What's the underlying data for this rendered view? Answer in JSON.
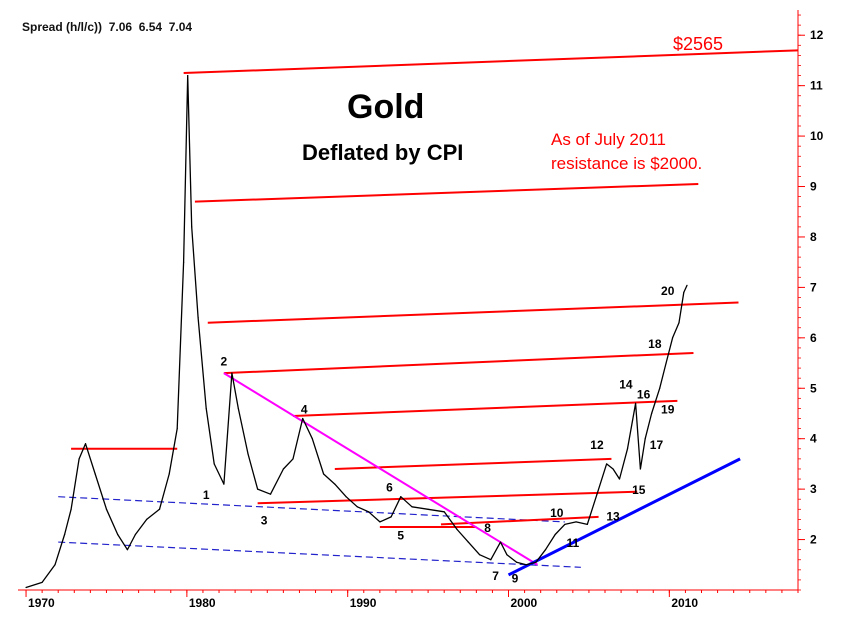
{
  "header": {
    "label": "Spread (h/l/c))",
    "high": "7.06",
    "low": "6.54",
    "close": "7.04"
  },
  "title": "Gold",
  "subtitle": "Deflated by CPI",
  "note": "As of July 2011\nresistance is $2000.",
  "target_label": "$2565",
  "colors": {
    "price": "#000000",
    "resistance": "#ff0000",
    "downtrend": "#ff00ff",
    "uptrend": "#0000ff",
    "channel": "#2222cc",
    "axis": "#ff0000"
  },
  "chart_data": {
    "type": "line",
    "xlim": [
      1969.5,
      2018
    ],
    "ylim": [
      1,
      12.5
    ],
    "x_ticks": [
      "1970",
      "1980",
      "1990",
      "2000",
      "2010"
    ],
    "y_ticks": [
      "2",
      "3",
      "4",
      "5",
      "6",
      "7",
      "8",
      "9",
      "10",
      "11",
      "12"
    ],
    "series": [
      {
        "style": "black price line",
        "x": [
          1970,
          1971,
          1971.8,
          1972.4,
          1972.8,
          1973.3,
          1973.7,
          1974.3,
          1975,
          1975.7,
          1976.3,
          1976.8,
          1977.5,
          1978.3,
          1978.9,
          1979.4,
          1979.8,
          1980.05,
          1980.3,
          1980.7,
          1981.2,
          1981.7,
          1982.3,
          1982.8,
          1983.2,
          1983.8,
          1984.4,
          1985.2,
          1986,
          1986.6,
          1987.2,
          1987.8,
          1988.5,
          1989.2,
          1989.9,
          1990.6,
          1991.3,
          1992,
          1992.7,
          1993.3,
          1994,
          1995,
          1996,
          1996.8,
          1997.5,
          1998.2,
          1998.9,
          1999.5,
          1999.9,
          2000.5,
          2001.1,
          2001.7,
          2002.3,
          2002.9,
          2003.5,
          2004.2,
          2004.9,
          2005.5,
          2006.1,
          2006.5,
          2006.9,
          2007.4,
          2007.9,
          2008.2,
          2008.5,
          2008.9,
          2009.4,
          2009.8,
          2010.2,
          2010.6,
          2010.9,
          2011.1
        ],
        "y": [
          1.05,
          1.15,
          1.5,
          2.1,
          2.6,
          3.6,
          3.9,
          3.3,
          2.6,
          2.1,
          1.8,
          2.1,
          2.4,
          2.6,
          3.3,
          4.2,
          7.5,
          11.2,
          8.2,
          6.4,
          4.6,
          3.5,
          3.1,
          5.3,
          4.6,
          3.7,
          3.0,
          2.9,
          3.4,
          3.6,
          4.4,
          4.0,
          3.3,
          3.1,
          2.85,
          2.65,
          2.55,
          2.35,
          2.45,
          2.85,
          2.65,
          2.6,
          2.55,
          2.2,
          1.95,
          1.7,
          1.6,
          1.95,
          1.7,
          1.55,
          1.5,
          1.55,
          1.8,
          2.1,
          2.3,
          2.35,
          2.3,
          2.9,
          3.5,
          3.4,
          3.2,
          3.8,
          4.7,
          3.4,
          4.0,
          4.5,
          5.0,
          5.5,
          6.0,
          6.3,
          6.9,
          7.04
        ]
      }
    ],
    "resistance_lines": [
      {
        "x": [
          1979.8,
          2018
        ],
        "y": [
          11.25,
          11.7
        ]
      },
      {
        "x": [
          1980.5,
          2011.8
        ],
        "y": [
          8.7,
          9.05
        ]
      },
      {
        "x": [
          1981.3,
          2014.3
        ],
        "y": [
          6.3,
          6.7
        ]
      },
      {
        "x": [
          1982.3,
          2011.5
        ],
        "y": [
          5.3,
          5.7
        ]
      },
      {
        "x": [
          1986.6,
          2010.5
        ],
        "y": [
          4.45,
          4.75
        ]
      },
      {
        "x": [
          1972.8,
          1979.4
        ],
        "y": [
          3.8,
          3.8
        ]
      },
      {
        "x": [
          1989.2,
          2006.4
        ],
        "y": [
          3.4,
          3.6
        ]
      },
      {
        "x": [
          1984.4,
          2008
        ],
        "y": [
          2.72,
          2.95
        ]
      },
      {
        "x": [
          1992,
          1998
        ],
        "y": [
          2.25,
          2.25
        ]
      },
      {
        "x": [
          1995.8,
          2005.6
        ],
        "y": [
          2.3,
          2.45
        ]
      }
    ],
    "downtrend_line": {
      "x": [
        1982.3,
        2001.8
      ],
      "y": [
        5.3,
        1.5
      ]
    },
    "uptrend_line": {
      "x": [
        2000,
        2014.4
      ],
      "y": [
        1.3,
        3.6
      ]
    },
    "channel_lines": [
      {
        "x": [
          1972,
          2003.5
        ],
        "y": [
          2.85,
          2.35
        ]
      },
      {
        "x": [
          1972,
          2004.5
        ],
        "y": [
          1.95,
          1.45
        ]
      }
    ],
    "wave_labels": [
      {
        "text": "1",
        "x": 1981.2,
        "y": 2.8
      },
      {
        "text": "2",
        "x": 1982.3,
        "y": 5.45
      },
      {
        "text": "3",
        "x": 1984.8,
        "y": 2.3
      },
      {
        "text": "4",
        "x": 1987.3,
        "y": 4.5
      },
      {
        "text": "5",
        "x": 1993.3,
        "y": 2.0
      },
      {
        "text": "6",
        "x": 1992.6,
        "y": 2.95
      },
      {
        "text": "7",
        "x": 1999.2,
        "y": 1.2
      },
      {
        "text": "8",
        "x": 1998.7,
        "y": 2.15
      },
      {
        "text": "9",
        "x": 2000.4,
        "y": 1.15
      },
      {
        "text": "10",
        "x": 2003,
        "y": 2.45
      },
      {
        "text": "11",
        "x": 2004,
        "y": 1.85
      },
      {
        "text": "12",
        "x": 2005.5,
        "y": 3.8
      },
      {
        "text": "13",
        "x": 2006.5,
        "y": 2.38
      },
      {
        "text": "14",
        "x": 2007.3,
        "y": 5.0
      },
      {
        "text": "15",
        "x": 2008.1,
        "y": 2.9
      },
      {
        "text": "16",
        "x": 2008.4,
        "y": 4.8
      },
      {
        "text": "17",
        "x": 2009.2,
        "y": 3.8
      },
      {
        "text": "18",
        "x": 2009.1,
        "y": 5.8
      },
      {
        "text": "19",
        "x": 2009.9,
        "y": 4.5
      },
      {
        "text": "20",
        "x": 2009.9,
        "y": 6.85
      }
    ]
  }
}
